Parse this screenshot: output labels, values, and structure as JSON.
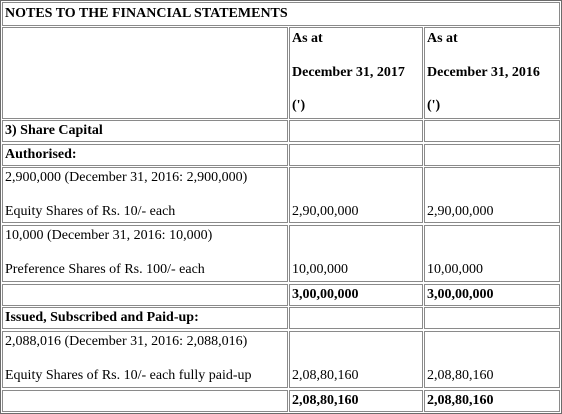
{
  "title": "NOTES TO THE FINANCIAL STATEMENTS",
  "header": {
    "col1": {
      "line1": "As at",
      "line2": "December 31, 2017",
      "line3": "(')"
    },
    "col2": {
      "line1": "As at",
      "line2": "December 31, 2016",
      "line3": "(')"
    }
  },
  "rows": {
    "share_capital": {
      "label": "3) Share Capital"
    },
    "authorised": {
      "label": "Authorised:"
    },
    "equity_auth": {
      "line1": "2,900,000 (December 31, 2016: 2,900,000)",
      "line2": "Equity Shares of Rs. 10/- each",
      "v2017": "2,90,00,000",
      "v2016": "2,90,00,000"
    },
    "pref_auth": {
      "line1": "10,000 (December 31, 2016: 10,000)",
      "line2": "Preference Shares of Rs. 100/- each",
      "v2017": "10,00,000",
      "v2016": "10,00,000"
    },
    "auth_total": {
      "v2017": "3,00,00,000",
      "v2016": "3,00,00,000"
    },
    "issued": {
      "label": "Issued, Subscribed and Paid-up:"
    },
    "equity_issued": {
      "line1": "2,088,016 (December 31, 2016: 2,088,016)",
      "line2": "Equity Shares of Rs. 10/- each fully paid-up",
      "v2017": "2,08,80,160",
      "v2016": "2,08,80,160"
    },
    "issued_total": {
      "v2017": "2,08,80,160",
      "v2016": "2,08,80,160"
    }
  }
}
